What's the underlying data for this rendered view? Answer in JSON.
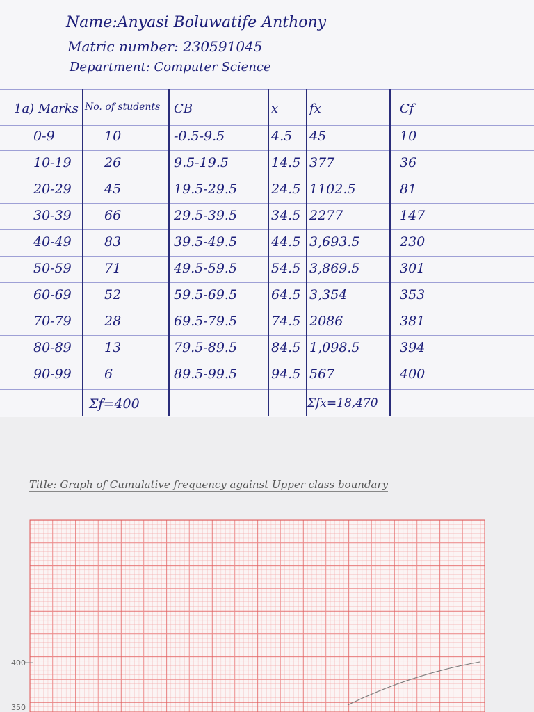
{
  "header": {
    "name": "Name:Anyasi Boluwatife Anthony",
    "matric": "Matric number: 230591045",
    "department": "Department: Computer Science"
  },
  "table": {
    "columns": [
      "1a) Marks",
      "No. of students",
      "CB",
      "x",
      "fx",
      "Cf"
    ],
    "rows": [
      [
        "0-9",
        "10",
        "-0.5-9.5",
        "4.5",
        "45",
        "10"
      ],
      [
        "10-19",
        "26",
        "9.5-19.5",
        "14.5",
        "377",
        "36"
      ],
      [
        "20-29",
        "45",
        "19.5-29.5",
        "24.5",
        "1102.5",
        "81"
      ],
      [
        "30-39",
        "66",
        "29.5-39.5",
        "34.5",
        "2277",
        "147"
      ],
      [
        "40-49",
        "83",
        "39.5-49.5",
        "44.5",
        "3,693.5",
        "230"
      ],
      [
        "50-59",
        "71",
        "49.5-59.5",
        "54.5",
        "3,869.5",
        "301"
      ],
      [
        "60-69",
        "52",
        "59.5-69.5",
        "64.5",
        "3,354",
        "353"
      ],
      [
        "70-79",
        "28",
        "69.5-79.5",
        "74.5",
        "2086",
        "381"
      ],
      [
        "80-89",
        "13",
        "79.5-89.5",
        "84.5",
        "1,098.5",
        "394"
      ],
      [
        "90-99",
        "6",
        "89.5-99.5",
        "94.5",
        "567",
        "400"
      ]
    ],
    "totals": {
      "frequency": "Σf=400",
      "fx": "Σfx=18,470"
    }
  },
  "graph": {
    "title": "Title: Graph of Cumulative frequency against Upper class boundary",
    "y_labels": [
      "400",
      "350"
    ]
  }
}
